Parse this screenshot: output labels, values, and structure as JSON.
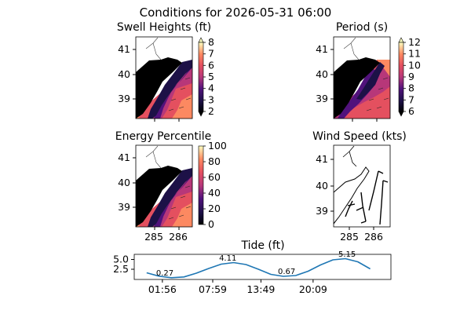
{
  "figure": {
    "title": "Conditions for 2026-05-31 06:00"
  },
  "chart_data": [
    {
      "type": "heatmap",
      "title": "Swell Heights (ft)",
      "x_ticks": [],
      "y_ticks": [
        "41",
        "40",
        "39"
      ],
      "colorbar": {
        "ticks": [
          "8",
          "7",
          "6",
          "5",
          "4",
          "3",
          "2"
        ],
        "range": [
          2,
          8
        ],
        "extend": "both",
        "colormap": "magma"
      },
      "field": "swell height contours offshore of New Jersey, roughly 2-6 ft increasing offshore",
      "arrows": true
    },
    {
      "type": "heatmap",
      "title": "Period (s)",
      "x_ticks": [],
      "y_ticks": [
        "41",
        "40",
        "39"
      ],
      "colorbar": {
        "ticks": [
          "12",
          "11",
          "10",
          "9",
          "8",
          "7",
          "6"
        ],
        "range": [
          6,
          12
        ],
        "extend": "both",
        "colormap": "magma"
      },
      "arrows": true
    },
    {
      "type": "heatmap",
      "title": "Energy Percentile",
      "x_ticks": [
        "285",
        "286"
      ],
      "y_ticks": [
        "41",
        "40",
        "39"
      ],
      "colorbar": {
        "ticks": [
          "100",
          "80",
          "60",
          "40",
          "20",
          "0"
        ],
        "range": [
          0,
          100
        ],
        "colormap": "magma"
      },
      "arrows": true
    },
    {
      "type": "scatter",
      "title": "Wind Speed (kts)",
      "x_ticks": [
        "285",
        "286"
      ],
      "y_ticks": [
        "41",
        "40",
        "39"
      ],
      "marks": "wind barbs"
    },
    {
      "type": "line",
      "title": "Tide (ft)",
      "x_ticks": [
        "01:56",
        "07:59",
        "13:49",
        "20:09"
      ],
      "y_ticks": [
        "5.0",
        "2.5"
      ],
      "ylim": [
        -0.1,
        6.3
      ],
      "x": [
        0.0,
        1.5,
        3.0,
        4.5,
        6.0,
        7.5,
        9.0,
        10.5,
        12.0,
        13.5,
        15.0,
        16.5,
        18.0,
        19.5,
        21.0,
        22.5,
        24.0,
        25.5,
        27.0
      ],
      "series": [
        {
          "values": [
            1.6,
            0.75,
            0.35,
            0.55,
            1.5,
            2.7,
            3.8,
            4.2,
            3.7,
            2.5,
            1.2,
            0.7,
            0.9,
            2.0,
            3.6,
            4.9,
            5.2,
            4.4,
            2.6
          ],
          "color": "#1f77b4"
        }
      ],
      "annotations": [
        {
          "label": "0.27",
          "x": 2.2,
          "y": 0.27
        },
        {
          "label": "4.11",
          "x": 9.8,
          "y": 4.11
        },
        {
          "label": "0.67",
          "x": 16.9,
          "y": 0.67
        },
        {
          "label": "5.15",
          "x": 24.2,
          "y": 5.15
        }
      ]
    }
  ]
}
